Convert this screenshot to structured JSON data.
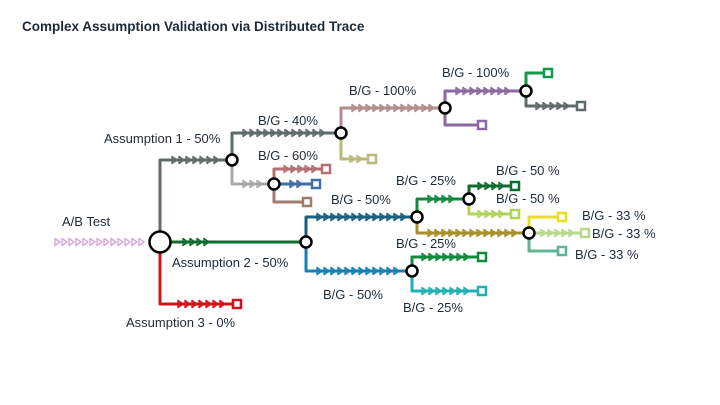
{
  "title": "Complex Assumption Validation via Distributed Trace",
  "colors": {
    "root_tail": "#d9a8d9",
    "a1": "#5f6b6b",
    "a2": "#0f6b2e",
    "a3": "#d0141e",
    "g40": "#5f6b6b",
    "g60": "#a8a8a8",
    "g100a": "#b08c8c",
    "g100b": "#8a6aa0",
    "leaf100a_stub": "#b9b97a",
    "leaf60a": "#b57070",
    "leaf60b": "#3e6ea8",
    "leaf60c": "#a07a6a",
    "leaf100b_up": "#0f9a4a",
    "leaf100b_down": "#5f6b6b",
    "leaf100b_stub": "#8a6aa0",
    "b50a": "#1a5f80",
    "b50b": "#1a7fb5",
    "b25a": "#118a3e",
    "b25b": "#a88f2a",
    "b25c": "#118a3e",
    "b25d": "#21b0b5",
    "b50c": "#0f6b2e",
    "b50d": "#b0d35a",
    "b33a": "#e8e01a",
    "b33b": "#b7d98f",
    "b33c": "#5fb58f"
  },
  "labels": {
    "ab_test": "A/B Test",
    "assumption1": "Assumption 1 - 50%",
    "assumption2": "Assumption 2 - 50%",
    "assumption3": "Assumption 3 - 0%",
    "bg40": "B/G - 40%",
    "bg60": "B/G - 60%",
    "bg100_left": "B/G - 100%",
    "bg100_right": "B/G - 100%",
    "bg50_up": "B/G - 50%",
    "bg50_down": "B/G - 50%",
    "bg25_a": "B/G - 25%",
    "bg25_b": "B/G - 25%",
    "bg25_c": "B/G - 25%",
    "bg50pct_a": "B/G - 50 %",
    "bg50pct_b": "B/G - 50 %",
    "bg33_a": "B/G - 33 %",
    "bg33_b": "B/G - 33 %",
    "bg33_c": "B/G - 33 %"
  }
}
